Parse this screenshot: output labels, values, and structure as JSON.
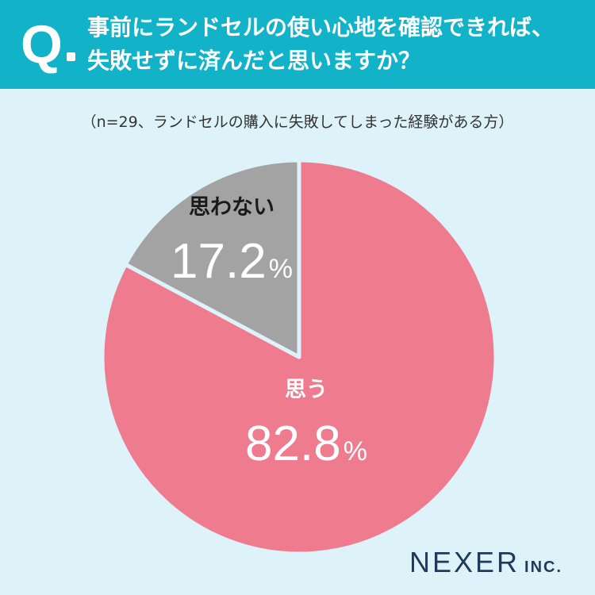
{
  "header": {
    "q_mark": "Q",
    "question_line1": "事前にランドセルの使い心地を確認できれば、",
    "question_line2": "失敗せずに済んだと思いますか？"
  },
  "note": "（n=29、ランドセルの購入に失敗してしまった経験がある方）",
  "chart_data": {
    "type": "pie",
    "start_angle_deg": 0,
    "direction": "clockwise",
    "slices": [
      {
        "label": "思う",
        "value": 82.8,
        "value_text": "82.8",
        "unit": "%",
        "color": "#ef7b8e"
      },
      {
        "label": "思わない",
        "value": 17.2,
        "value_text": "17.2",
        "unit": "%",
        "color": "#a3a3a3"
      }
    ],
    "separator_color": "#ddf3f9"
  },
  "logo": {
    "main": "NEXER",
    "sub": "INC."
  }
}
